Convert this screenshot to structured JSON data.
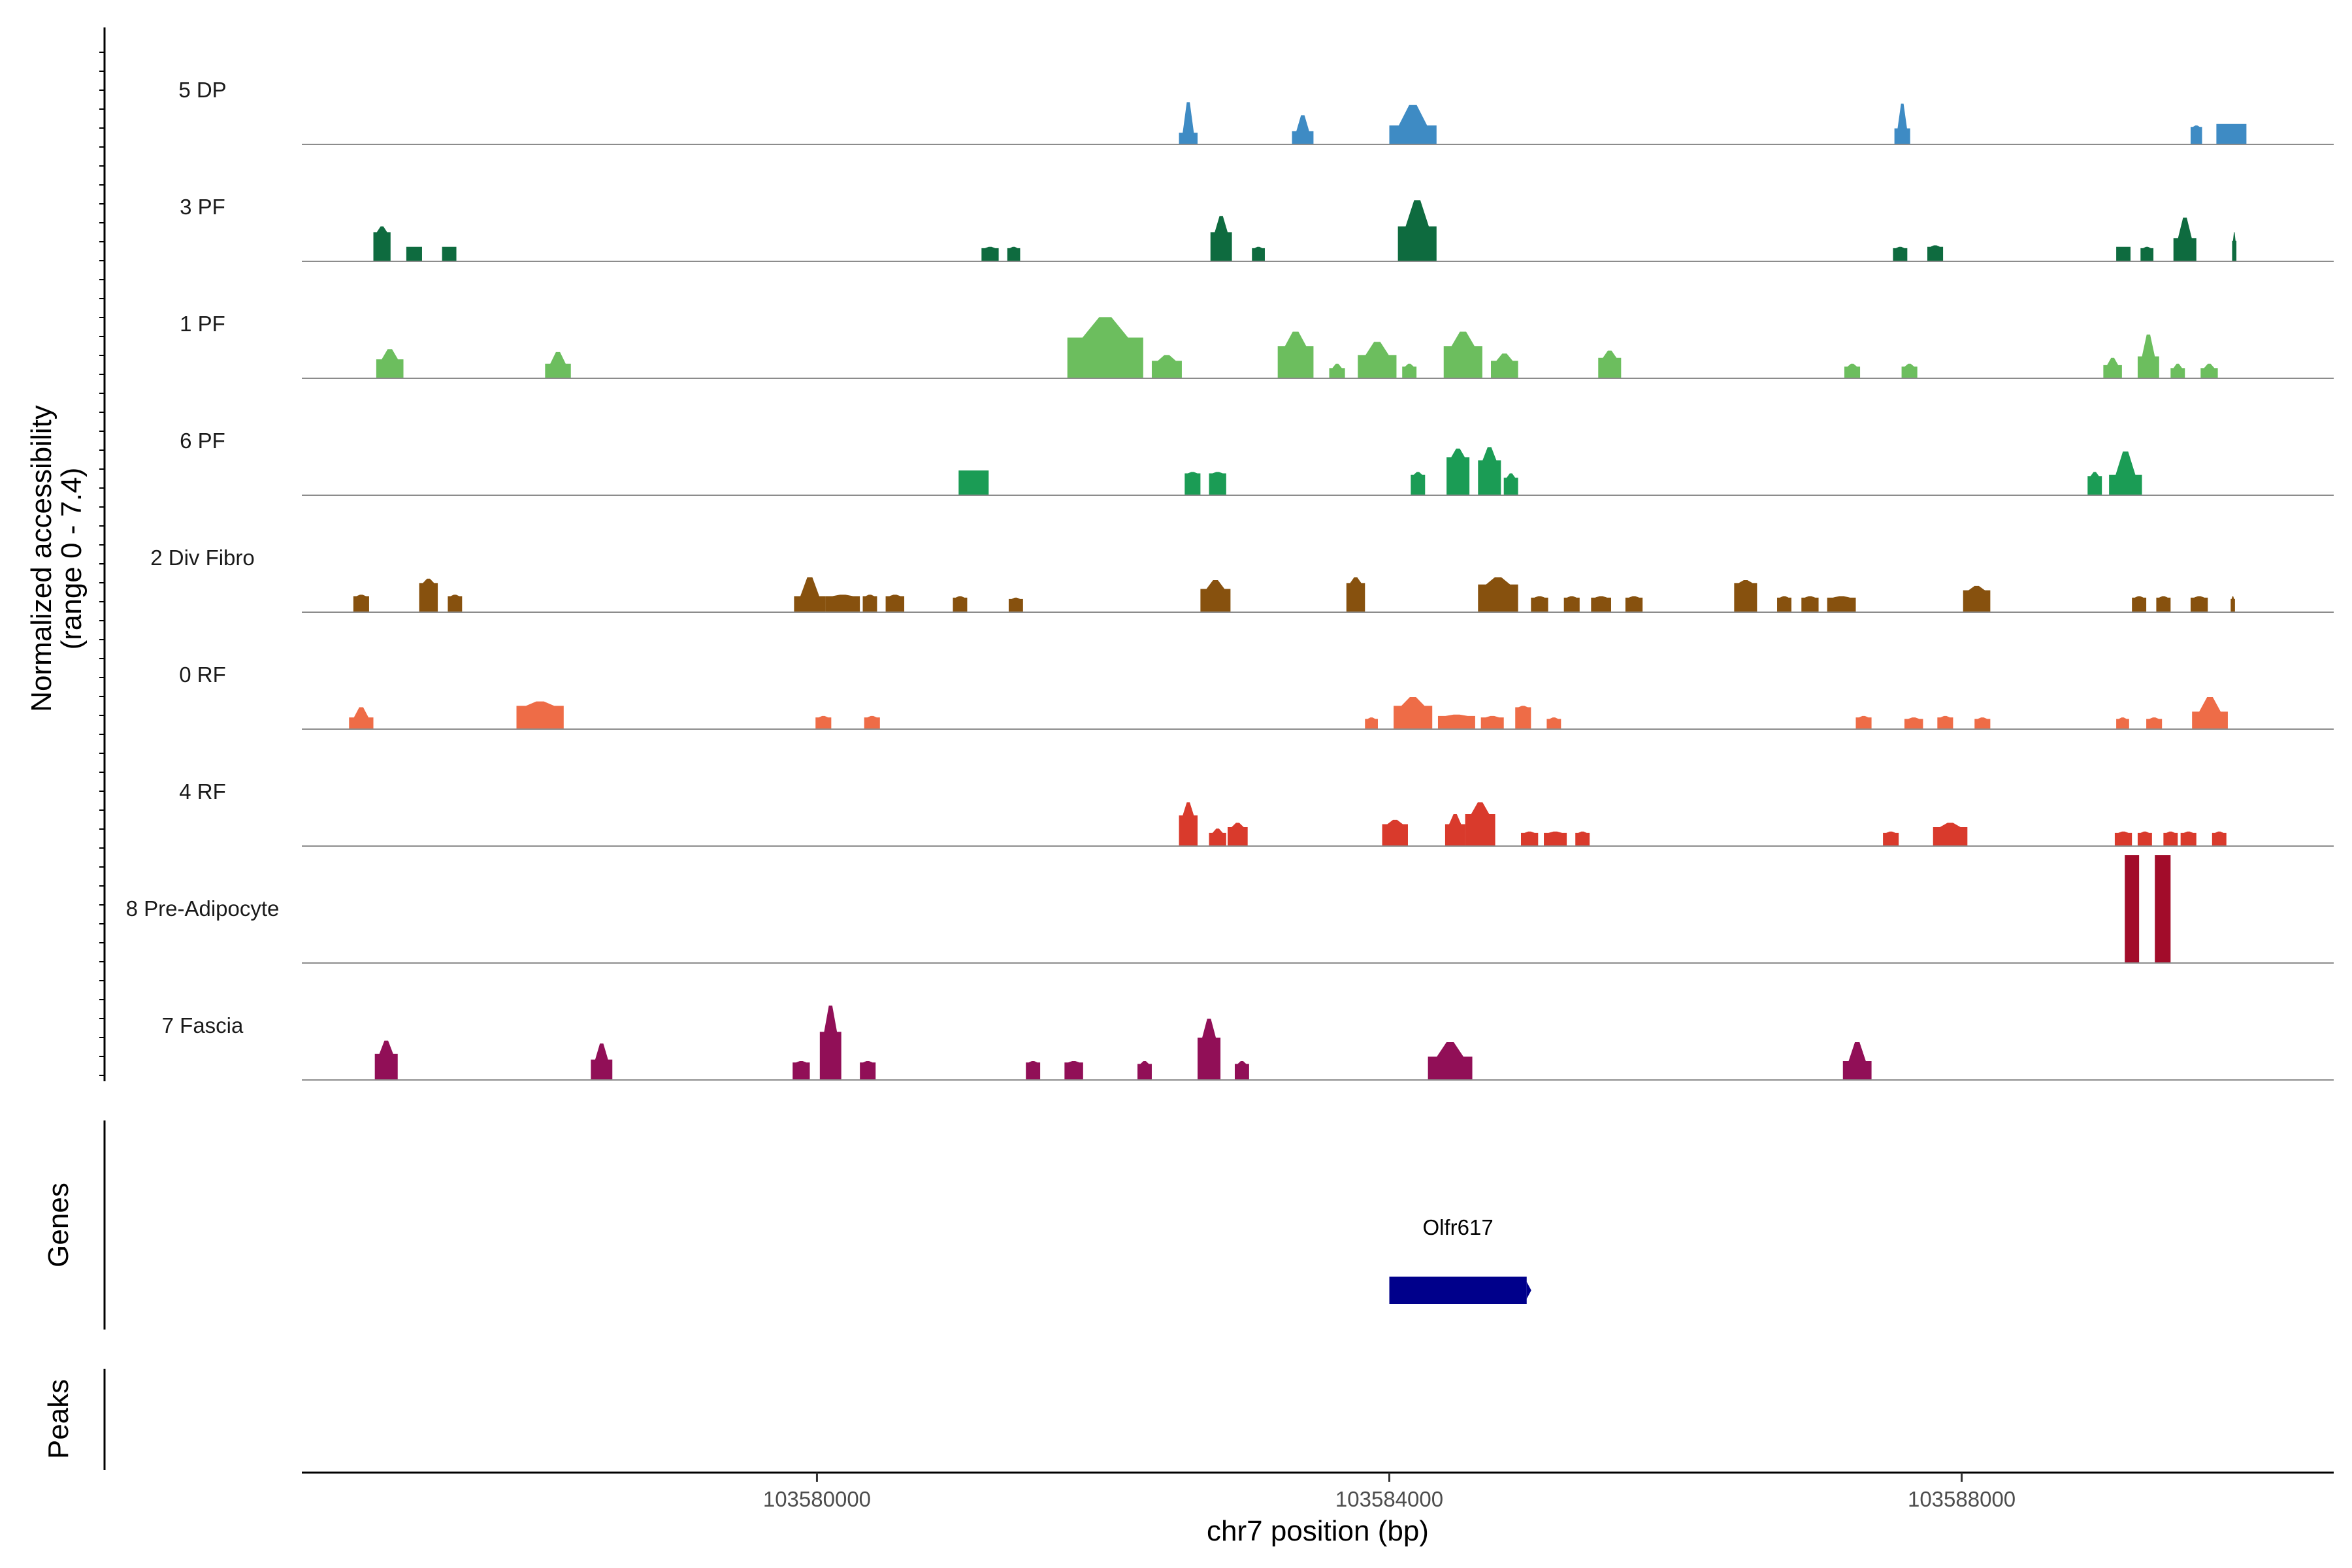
{
  "chart_data": {
    "type": "area",
    "title": "",
    "region": "chr7",
    "xlabel": "chr7 position (bp)",
    "ylabel_line1": "Normalized accessibility",
    "ylabel_line2": "(range 0 - 7.4)",
    "y_range": [
      0,
      7.4
    ],
    "x_range": [
      103576400,
      103590600
    ],
    "x_ticks": [
      103580000,
      103584000,
      103588000
    ],
    "x_tick_labels": [
      "103580000",
      "103584000",
      "103588000"
    ],
    "tracks": [
      {
        "name": "5 DP",
        "color": "#3E8BC4",
        "peaks": [
          [
            103582530,
            103582660,
            0.8,
            2.9
          ],
          [
            103583320,
            103583470,
            0.9,
            2.0
          ],
          [
            103584000,
            103584330,
            1.3,
            2.7
          ],
          [
            103587530,
            103587640,
            1.1,
            2.8
          ],
          [
            103589600,
            103589680,
            1.2,
            1.3
          ],
          [
            103589780,
            103589990,
            1.4,
            1.4
          ]
        ]
      },
      {
        "name": "3 PF",
        "color": "#0E6B3F",
        "peaks": [
          [
            103576900,
            103577020,
            2.0,
            2.4
          ],
          [
            103577130,
            103577240,
            1.0,
            1.0
          ],
          [
            103577380,
            103577480,
            1.0,
            1.0
          ],
          [
            103581150,
            103581270,
            0.9,
            1.0
          ],
          [
            103581330,
            103581420,
            0.9,
            1.0
          ],
          [
            103582750,
            103582900,
            2.0,
            3.1
          ],
          [
            103583040,
            103583130,
            0.9,
            1.0
          ],
          [
            103584060,
            103584330,
            2.4,
            4.2
          ],
          [
            103587520,
            103587620,
            0.9,
            1.0
          ],
          [
            103587760,
            103587870,
            1.0,
            1.1
          ],
          [
            103589080,
            103589180,
            1.0,
            1.0
          ],
          [
            103589250,
            103589340,
            0.9,
            1.0
          ],
          [
            103589480,
            103589640,
            1.6,
            3.0
          ],
          [
            103589890,
            103589920,
            1.4,
            2.0
          ]
        ]
      },
      {
        "name": "1 PF",
        "color": "#6CBE5E",
        "peaks": [
          [
            103576920,
            103577110,
            1.3,
            2.0
          ],
          [
            103578100,
            103578280,
            1.0,
            1.8
          ],
          [
            103581750,
            103582280,
            2.8,
            4.2
          ],
          [
            103582340,
            103582550,
            1.2,
            1.6
          ],
          [
            103583220,
            103583470,
            2.2,
            3.2
          ],
          [
            103583580,
            103583690,
            0.7,
            1.0
          ],
          [
            103583780,
            103584050,
            1.6,
            2.5
          ],
          [
            103584090,
            103584190,
            0.8,
            1.0
          ],
          [
            103584380,
            103584650,
            2.2,
            3.2
          ],
          [
            103584710,
            103584900,
            1.2,
            1.7
          ],
          [
            103585460,
            103585620,
            1.4,
            1.9
          ],
          [
            103587180,
            103587290,
            0.8,
            1.0
          ],
          [
            103587580,
            103587690,
            0.8,
            1.0
          ],
          [
            103588990,
            103589120,
            0.9,
            1.4
          ],
          [
            103589230,
            103589380,
            1.5,
            3.0
          ],
          [
            103589460,
            103589560,
            0.7,
            1.0
          ],
          [
            103589670,
            103589790,
            0.7,
            1.0
          ]
        ]
      },
      {
        "name": "6 PF",
        "color": "#1B9C55",
        "peaks": [
          [
            103580990,
            103581200,
            1.7,
            1.7
          ],
          [
            103582570,
            103582680,
            1.5,
            1.6
          ],
          [
            103582740,
            103582860,
            1.5,
            1.6
          ],
          [
            103584150,
            103584250,
            1.4,
            1.6
          ],
          [
            103584400,
            103584560,
            2.6,
            3.2
          ],
          [
            103584620,
            103584780,
            2.4,
            3.3
          ],
          [
            103584800,
            103584900,
            1.2,
            1.5
          ],
          [
            103588880,
            103588980,
            1.3,
            1.6
          ],
          [
            103589030,
            103589260,
            1.4,
            3.0
          ]
        ]
      },
      {
        "name": "2 Div Fibro",
        "color": "#87510E",
        "peaks": [
          [
            103576760,
            103576870,
            1.1,
            1.2
          ],
          [
            103577220,
            103577350,
            2.0,
            2.3
          ],
          [
            103577420,
            103577520,
            1.1,
            1.2
          ],
          [
            103579840,
            103580060,
            1.1,
            2.4
          ],
          [
            103580060,
            103580300,
            1.1,
            1.2
          ],
          [
            103580320,
            103580420,
            1.1,
            1.2
          ],
          [
            103580480,
            103580610,
            1.1,
            1.2
          ],
          [
            103580950,
            103581050,
            1.0,
            1.1
          ],
          [
            103581340,
            103581440,
            0.9,
            1.0
          ],
          [
            103582680,
            103582890,
            1.6,
            2.2
          ],
          [
            103583700,
            103583830,
            2.0,
            2.4
          ],
          [
            103584620,
            103584900,
            1.9,
            2.4
          ],
          [
            103584990,
            103585110,
            1.0,
            1.1
          ],
          [
            103585220,
            103585330,
            1.0,
            1.1
          ],
          [
            103585410,
            103585550,
            1.0,
            1.1
          ],
          [
            103585650,
            103585770,
            1.0,
            1.1
          ],
          [
            103586410,
            103586570,
            2.0,
            2.2
          ],
          [
            103586710,
            103586810,
            1.0,
            1.1
          ],
          [
            103586880,
            103587000,
            1.0,
            1.1
          ],
          [
            103587060,
            103587260,
            1.0,
            1.1
          ],
          [
            103588010,
            103588200,
            1.5,
            1.8
          ],
          [
            103589190,
            103589290,
            1.0,
            1.1
          ],
          [
            103589360,
            103589460,
            1.0,
            1.1
          ],
          [
            103589600,
            103589720,
            1.0,
            1.1
          ],
          [
            103589880,
            103589910,
            0.9,
            1.1
          ]
        ]
      },
      {
        "name": "0 RF",
        "color": "#EE6C47",
        "peaks": [
          [
            103576730,
            103576900,
            0.8,
            1.5
          ],
          [
            103577900,
            103578230,
            1.6,
            1.9
          ],
          [
            103579990,
            103580100,
            0.8,
            0.9
          ],
          [
            103580330,
            103580440,
            0.8,
            0.9
          ],
          [
            103583830,
            103583920,
            0.7,
            0.8
          ],
          [
            103584030,
            103584300,
            1.6,
            2.2
          ],
          [
            103584340,
            103584600,
            0.9,
            1.0
          ],
          [
            103584640,
            103584800,
            0.8,
            0.9
          ],
          [
            103584880,
            103584990,
            1.5,
            1.6
          ],
          [
            103585100,
            103585200,
            0.7,
            0.8
          ],
          [
            103587260,
            103587370,
            0.8,
            0.9
          ],
          [
            103587600,
            103587730,
            0.7,
            0.8
          ],
          [
            103587830,
            103587940,
            0.8,
            0.9
          ],
          [
            103588090,
            103588200,
            0.7,
            0.8
          ],
          [
            103589080,
            103589170,
            0.7,
            0.8
          ],
          [
            103589290,
            103589400,
            0.7,
            0.8
          ],
          [
            103589610,
            103589860,
            1.2,
            2.2
          ]
        ]
      },
      {
        "name": "4 RF",
        "color": "#D93A2C",
        "peaks": [
          [
            103582530,
            103582660,
            2.1,
            3.0
          ],
          [
            103582740,
            103582860,
            0.9,
            1.2
          ],
          [
            103582870,
            103583010,
            1.3,
            1.6
          ],
          [
            103583950,
            103584130,
            1.5,
            1.8
          ],
          [
            103584390,
            103584530,
            1.5,
            2.2
          ],
          [
            103584530,
            103584740,
            2.2,
            3.0
          ],
          [
            103584920,
            103585040,
            0.9,
            1.0
          ],
          [
            103585080,
            103585240,
            0.9,
            1.0
          ],
          [
            103585300,
            103585400,
            0.9,
            1.0
          ],
          [
            103587450,
            103587560,
            0.9,
            1.0
          ],
          [
            103587800,
            103588040,
            1.3,
            1.6
          ],
          [
            103589070,
            103589190,
            0.9,
            1.0
          ],
          [
            103589230,
            103589330,
            0.9,
            1.0
          ],
          [
            103589410,
            103589510,
            0.9,
            1.0
          ],
          [
            103589530,
            103589640,
            0.9,
            1.0
          ],
          [
            103589750,
            103589850,
            0.9,
            1.0
          ]
        ]
      },
      {
        "name": "8 Pre-Adipocyte",
        "color": "#A20C2A",
        "peaks": [
          [
            103589140,
            103589240,
            7.4,
            7.4
          ],
          [
            103589350,
            103589460,
            7.4,
            7.4
          ]
        ]
      },
      {
        "name": "7 Fascia",
        "color": "#910F57",
        "peaks": [
          [
            103576910,
            103577070,
            1.8,
            2.7
          ],
          [
            103578420,
            103578570,
            1.4,
            2.5
          ],
          [
            103579830,
            103579950,
            1.2,
            1.3
          ],
          [
            103580020,
            103580170,
            3.3,
            5.1
          ],
          [
            103580300,
            103580410,
            1.2,
            1.3
          ],
          [
            103581460,
            103581560,
            1.2,
            1.3
          ],
          [
            103581730,
            103581860,
            1.2,
            1.3
          ],
          [
            103582240,
            103582340,
            1.1,
            1.3
          ],
          [
            103582660,
            103582820,
            2.9,
            4.2
          ],
          [
            103582920,
            103583020,
            1.1,
            1.3
          ],
          [
            103584270,
            103584580,
            1.6,
            2.6
          ],
          [
            103587170,
            103587370,
            1.3,
            2.6
          ]
        ]
      }
    ],
    "genes": [
      {
        "name": "Olfr617",
        "start": 103584000,
        "end": 103584960,
        "color": "#00008B"
      }
    ],
    "side_panels": [
      "Genes",
      "Peaks"
    ]
  }
}
